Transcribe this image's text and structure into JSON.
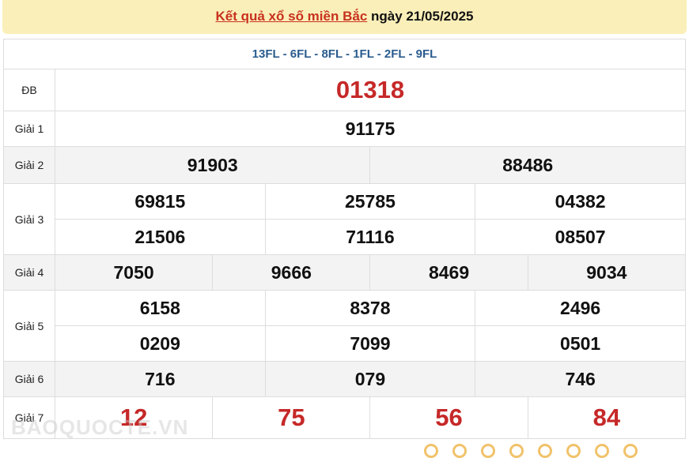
{
  "header": {
    "link_text": "Kết quả xổ số miền Bắc",
    "date_text": "ngày 21/05/2025"
  },
  "codes": "13FL - 6FL - 8FL - 1FL - 2FL - 9FL",
  "prizes": {
    "db": {
      "label": "ĐB",
      "values": [
        "01318"
      ]
    },
    "g1": {
      "label": "Giải 1",
      "values": [
        "91175"
      ]
    },
    "g2": {
      "label": "Giải 2",
      "values": [
        "91903",
        "88486"
      ]
    },
    "g3": {
      "label": "Giải 3",
      "values": [
        "69815",
        "25785",
        "04382",
        "21506",
        "71116",
        "08507"
      ]
    },
    "g4": {
      "label": "Giải 4",
      "values": [
        "7050",
        "9666",
        "8469",
        "9034"
      ]
    },
    "g5": {
      "label": "Giải 5",
      "values": [
        "6158",
        "8378",
        "2496",
        "0209",
        "7099",
        "0501"
      ]
    },
    "g6": {
      "label": "Giải 6",
      "values": [
        "716",
        "079",
        "746"
      ]
    },
    "g7": {
      "label": "Giải 7",
      "values": [
        "12",
        "75",
        "56",
        "84"
      ]
    }
  },
  "watermark": "BAOQUOCTE.VN",
  "colors": {
    "accent_red": "#c62828",
    "code_blue": "#2a5c8e",
    "header_bg": "#faefb9"
  }
}
